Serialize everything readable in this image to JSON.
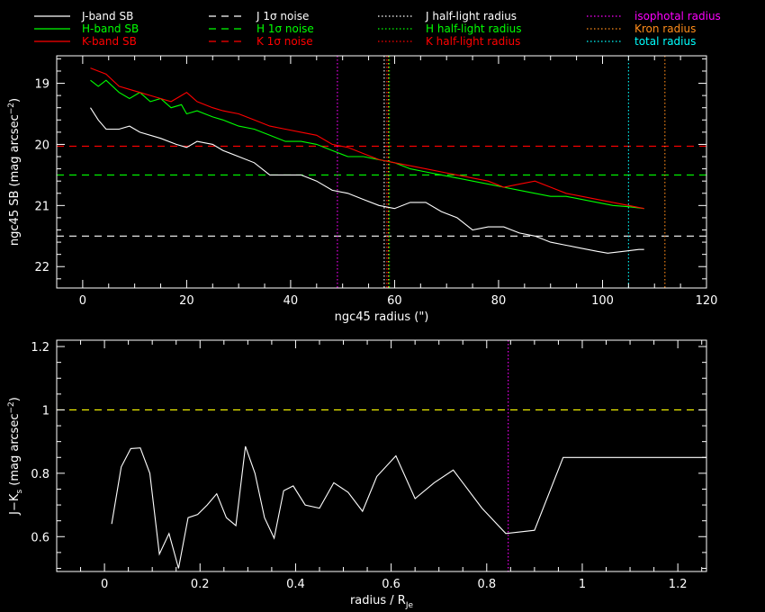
{
  "colors": {
    "background": "#000000",
    "axes": "#ffffff",
    "J": "#ffffff",
    "H": "#00ff00",
    "K": "#ff0000",
    "isophotal": "#ff00ff",
    "kron": "#ff8c1a",
    "total": "#00ffff",
    "yellow_ref": "#ffff00"
  },
  "legend": {
    "col1": [
      {
        "label": "J-band SB",
        "color": "#ffffff",
        "style": "solid"
      },
      {
        "label": "H-band SB",
        "color": "#00ff00",
        "style": "solid"
      },
      {
        "label": "K-band SB",
        "color": "#ff0000",
        "style": "solid"
      }
    ],
    "col2": [
      {
        "label": "J 1σ noise",
        "color": "#ffffff",
        "style": "dashed"
      },
      {
        "label": "H 1σ noise",
        "color": "#00ff00",
        "style": "dashed"
      },
      {
        "label": "K 1σ noise",
        "color": "#ff0000",
        "style": "dashed"
      }
    ],
    "col3": [
      {
        "label": "J half-light radius",
        "color": "#ffffff",
        "style": "dotted"
      },
      {
        "label": "H half-light radius",
        "color": "#00ff00",
        "style": "dotted"
      },
      {
        "label": "K half-light radius",
        "color": "#ff0000",
        "style": "dotted"
      }
    ],
    "col4": [
      {
        "label": "isophotal radius",
        "color": "#ff00ff",
        "style": "dotted"
      },
      {
        "label": "Kron radius",
        "color": "#ff8c1a",
        "style": "dotted"
      },
      {
        "label": "total radius",
        "color": "#00ffff",
        "style": "dotted"
      }
    ]
  },
  "chart_data": [
    {
      "type": "line",
      "xlabel": "ngc45 radius (\")",
      "ylabel": "ngc45 SB (mag arcsec",
      "ylabel_sup": "−2",
      "ylabel_end": ")",
      "xlim": [
        -5,
        120
      ],
      "ylim": [
        22.35,
        18.55
      ],
      "y_inverted": true,
      "xticks": [
        0,
        20,
        40,
        60,
        80,
        100,
        120
      ],
      "xtick_labels": [
        "0",
        "20",
        "40",
        "60",
        "80",
        "100",
        "120"
      ],
      "yticks": [
        19,
        20,
        21,
        22
      ],
      "ytick_labels": [
        "19",
        "20",
        "21",
        "22"
      ],
      "series": [
        {
          "name": "J-band SB",
          "color": "#ffffff",
          "x": [
            1.5,
            3,
            4.5,
            7,
            9,
            11,
            15,
            18,
            20,
            22,
            25,
            27,
            30,
            33,
            36,
            39,
            42,
            45,
            48,
            51,
            54,
            57,
            60,
            63,
            66,
            69,
            72,
            75,
            78,
            81,
            84,
            87,
            90,
            93,
            96,
            99,
            101,
            104,
            107,
            108
          ],
          "y": [
            19.4,
            19.6,
            19.75,
            19.75,
            19.7,
            19.8,
            19.9,
            20.0,
            20.05,
            19.95,
            20.0,
            20.1,
            20.2,
            20.3,
            20.5,
            20.5,
            20.5,
            20.6,
            20.75,
            20.8,
            20.9,
            21.0,
            21.05,
            20.95,
            20.95,
            21.1,
            21.2,
            21.4,
            21.35,
            21.35,
            21.45,
            21.5,
            21.6,
            21.65,
            21.7,
            21.75,
            21.78,
            21.75,
            21.72,
            21.72
          ]
        },
        {
          "name": "H-band SB",
          "color": "#00ff00",
          "x": [
            1.5,
            3,
            4.5,
            7,
            9,
            11,
            13,
            15,
            17,
            19,
            20,
            22,
            25,
            27,
            30,
            33,
            36,
            39,
            42,
            45,
            48,
            51,
            54,
            57,
            60,
            63,
            66,
            69,
            72,
            75,
            78,
            81,
            84,
            87,
            90,
            93,
            96,
            99,
            102,
            105,
            108
          ],
          "y": [
            18.95,
            19.05,
            18.95,
            19.15,
            19.25,
            19.15,
            19.3,
            19.25,
            19.4,
            19.35,
            19.5,
            19.45,
            19.55,
            19.6,
            19.7,
            19.75,
            19.85,
            19.95,
            19.95,
            20.0,
            20.1,
            20.2,
            20.2,
            20.25,
            20.3,
            20.4,
            20.45,
            20.5,
            20.55,
            20.6,
            20.65,
            20.7,
            20.75,
            20.8,
            20.85,
            20.85,
            20.9,
            20.95,
            21.0,
            21.02,
            21.05
          ]
        },
        {
          "name": "K-band SB",
          "color": "#ff0000",
          "x": [
            1.5,
            3,
            4.5,
            7,
            9,
            11,
            13,
            15,
            17,
            19,
            20,
            22,
            25,
            27,
            30,
            33,
            36,
            39,
            42,
            45,
            48,
            51,
            54,
            57,
            60,
            63,
            66,
            69,
            72,
            75,
            78,
            81,
            84,
            87,
            90,
            93,
            96,
            99,
            102,
            105,
            108
          ],
          "y": [
            18.75,
            18.8,
            18.85,
            19.05,
            19.1,
            19.15,
            19.2,
            19.25,
            19.3,
            19.2,
            19.15,
            19.3,
            19.4,
            19.45,
            19.5,
            19.6,
            19.7,
            19.75,
            19.8,
            19.85,
            20.0,
            20.05,
            20.15,
            20.25,
            20.3,
            20.35,
            20.4,
            20.45,
            20.5,
            20.55,
            20.6,
            20.7,
            20.65,
            20.6,
            20.7,
            20.8,
            20.85,
            20.9,
            20.95,
            21.0,
            21.05
          ]
        }
      ],
      "hlines": [
        {
          "name": "J 1σ noise",
          "y": 21.5,
          "color": "#ffffff"
        },
        {
          "name": "H 1σ noise",
          "y": 20.5,
          "color": "#00ff00"
        },
        {
          "name": "K 1σ noise",
          "y": 20.03,
          "color": "#ff0000"
        }
      ],
      "vlines": [
        {
          "name": "isophotal radius",
          "x": 49,
          "color": "#ff00ff"
        },
        {
          "name": "J half-light radius",
          "x": 58,
          "color": "#ffffff"
        },
        {
          "name": "K half-light radius",
          "x": 58.5,
          "color": "#ff0000"
        },
        {
          "name": "Kron radius",
          "x": 58.8,
          "color": "#ff8c1a"
        },
        {
          "name": "H half-light radius",
          "x": 59,
          "color": "#00ff00"
        },
        {
          "name": "total radius",
          "x": 105,
          "color": "#00ffff"
        },
        {
          "name": "Kron radius",
          "x": 112,
          "color": "#ff8c1a"
        }
      ],
      "grid": false
    },
    {
      "type": "line",
      "xlabel": "radius / R",
      "xlabel_sub": "Je",
      "ylabel": "J−K",
      "ylabel_sub": "s",
      "ylabel_rest": " (mag arcsec",
      "ylabel_sup": "−2",
      "ylabel_end": ")",
      "xlim": [
        -0.1,
        1.26
      ],
      "ylim": [
        0.49,
        1.22
      ],
      "xticks": [
        0,
        0.2,
        0.4,
        0.6,
        0.8,
        1,
        1.2
      ],
      "xtick_labels": [
        "0",
        "0.2",
        "0.4",
        "0.6",
        "0.8",
        "1",
        "1.2"
      ],
      "yticks": [
        0.6,
        0.8,
        1,
        1.2
      ],
      "ytick_labels": [
        "0.6",
        "0.8",
        "1",
        "1.2"
      ],
      "series": [
        {
          "name": "J-K",
          "color": "#ffffff",
          "x": [
            0.015,
            0.035,
            0.055,
            0.075,
            0.095,
            0.115,
            0.135,
            0.155,
            0.175,
            0.195,
            0.215,
            0.235,
            0.255,
            0.275,
            0.295,
            0.315,
            0.335,
            0.355,
            0.375,
            0.395,
            0.42,
            0.45,
            0.48,
            0.51,
            0.54,
            0.57,
            0.61,
            0.65,
            0.69,
            0.73,
            0.79,
            0.84,
            0.9,
            0.96,
            1.0,
            1.05,
            1.12,
            1.2,
            1.26
          ],
          "y": [
            0.64,
            0.82,
            0.878,
            0.88,
            0.8,
            0.545,
            0.61,
            0.5,
            0.66,
            0.67,
            0.7,
            0.735,
            0.66,
            0.635,
            0.885,
            0.8,
            0.66,
            0.595,
            0.745,
            0.76,
            0.7,
            0.69,
            0.77,
            0.74,
            0.68,
            0.79,
            0.855,
            0.72,
            0.77,
            0.81,
            0.69,
            0.61,
            0.62,
            0.85,
            0.85,
            0.85,
            0.85,
            0.85,
            0.85
          ]
        }
      ],
      "hlines": [
        {
          "name": "reference",
          "y": 1.0,
          "color": "#ffff00"
        }
      ],
      "vlines": [
        {
          "name": "isophotal radius",
          "x": 0.845,
          "color": "#ff00ff"
        }
      ],
      "grid": false
    }
  ]
}
